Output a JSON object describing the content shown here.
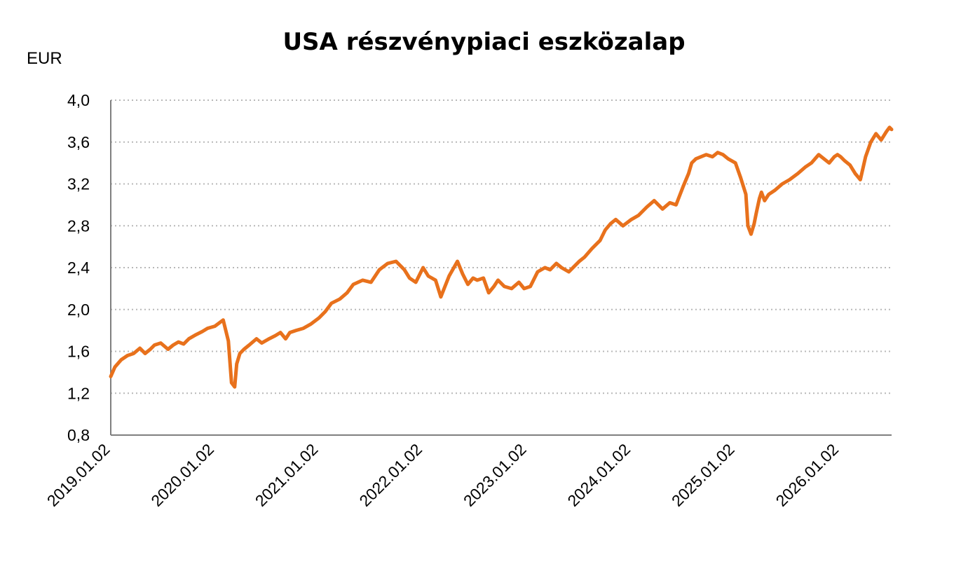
{
  "chart_data": {
    "type": "line",
    "title": "USA részvénypiaci eszközalap",
    "ylabel": "EUR",
    "xlabel": "",
    "ylim": [
      0.8,
      4.0
    ],
    "yticks": [
      "0,8",
      "1,2",
      "1,6",
      "2,0",
      "2,4",
      "2,8",
      "3,2",
      "3,6",
      "4,0"
    ],
    "ytick_values": [
      0.8,
      1.2,
      1.6,
      2.0,
      2.4,
      2.8,
      3.2,
      3.6,
      4.0
    ],
    "xticks": [
      "2019.01.02",
      "2020.01.02",
      "2021.01.02",
      "2022.01.02",
      "2023.01.02",
      "2024.01.02",
      "2025.01.02",
      "2026.01.02"
    ],
    "xlim": [
      2019.0,
      2026.5
    ],
    "grid": "horizontal dotted",
    "legend": "none",
    "line_color": "#E8711C",
    "series": [
      {
        "x": [
          2019.0,
          2019.04,
          2019.1,
          2019.16,
          2019.22,
          2019.28,
          2019.33,
          2019.38,
          2019.42,
          2019.48,
          2019.55,
          2019.6,
          2019.65,
          2019.7,
          2019.75,
          2019.82,
          2019.88,
          2019.93,
          2020.0,
          2020.08,
          2020.13,
          2020.16,
          2020.19,
          2020.21,
          2020.24,
          2020.28,
          2020.33,
          2020.4,
          2020.45,
          2020.52,
          2020.58,
          2020.63,
          2020.68,
          2020.72,
          2020.78,
          2020.85,
          2020.92,
          2021.0,
          2021.06,
          2021.12,
          2021.2,
          2021.27,
          2021.33,
          2021.42,
          2021.5,
          2021.58,
          2021.66,
          2021.74,
          2021.82,
          2021.87,
          2021.93,
          2022.0,
          2022.05,
          2022.12,
          2022.17,
          2022.25,
          2022.33,
          2022.38,
          2022.43,
          2022.48,
          2022.52,
          2022.58,
          2022.63,
          2022.68,
          2022.72,
          2022.78,
          2022.85,
          2022.92,
          2022.97,
          2023.03,
          2023.1,
          2023.17,
          2023.22,
          2023.28,
          2023.33,
          2023.4,
          2023.5,
          2023.55,
          2023.62,
          2023.7,
          2023.75,
          2023.8,
          2023.85,
          2023.92,
          2024.0,
          2024.07,
          2024.15,
          2024.22,
          2024.3,
          2024.37,
          2024.43,
          2024.5,
          2024.55,
          2024.58,
          2024.62,
          2024.67,
          2024.72,
          2024.78,
          2024.83,
          2024.88,
          2024.93,
          2025.0,
          2025.05,
          2025.1,
          2025.12,
          2025.15,
          2025.18,
          2025.2,
          2025.23,
          2025.25,
          2025.28,
          2025.32,
          2025.38,
          2025.45,
          2025.52,
          2025.6,
          2025.67,
          2025.73,
          2025.8,
          2025.85,
          2025.9,
          2025.95,
          2025.98,
          2026.01,
          2026.05,
          2026.1,
          2026.15,
          2026.2,
          2026.25,
          2026.3,
          2026.35,
          2026.4,
          2026.45,
          2026.48,
          2026.5
        ],
        "y": [
          1.36,
          1.45,
          1.52,
          1.56,
          1.58,
          1.63,
          1.58,
          1.62,
          1.66,
          1.68,
          1.62,
          1.66,
          1.69,
          1.67,
          1.72,
          1.76,
          1.79,
          1.82,
          1.84,
          1.9,
          1.7,
          1.3,
          1.26,
          1.48,
          1.58,
          1.62,
          1.66,
          1.72,
          1.68,
          1.72,
          1.75,
          1.78,
          1.72,
          1.78,
          1.8,
          1.82,
          1.86,
          1.92,
          1.98,
          2.06,
          2.1,
          2.16,
          2.24,
          2.28,
          2.26,
          2.38,
          2.44,
          2.46,
          2.38,
          2.3,
          2.26,
          2.4,
          2.32,
          2.28,
          2.12,
          2.32,
          2.46,
          2.34,
          2.24,
          2.3,
          2.28,
          2.3,
          2.16,
          2.22,
          2.28,
          2.22,
          2.2,
          2.26,
          2.2,
          2.22,
          2.36,
          2.4,
          2.38,
          2.44,
          2.4,
          2.36,
          2.46,
          2.5,
          2.58,
          2.66,
          2.76,
          2.82,
          2.86,
          2.8,
          2.86,
          2.9,
          2.98,
          3.04,
          2.96,
          3.02,
          3.0,
          3.18,
          3.3,
          3.4,
          3.44,
          3.46,
          3.48,
          3.46,
          3.5,
          3.48,
          3.44,
          3.4,
          3.26,
          3.1,
          2.8,
          2.72,
          2.82,
          2.92,
          3.06,
          3.12,
          3.04,
          3.1,
          3.14,
          3.2,
          3.24,
          3.3,
          3.36,
          3.4,
          3.48,
          3.44,
          3.4,
          3.46,
          3.48,
          3.46,
          3.42,
          3.38,
          3.3,
          3.24,
          3.46,
          3.6,
          3.68,
          3.62,
          3.7,
          3.74,
          3.72
        ]
      }
    ]
  }
}
